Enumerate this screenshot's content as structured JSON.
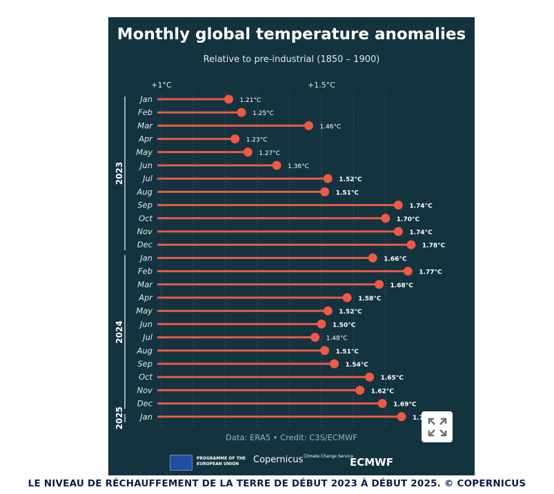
{
  "chart_data": {
    "type": "lollipop",
    "title": "Monthly global temperature anomalies",
    "subtitle": "Relative to pre-industrial (1850 – 1900)",
    "x_ticks": [
      {
        "value": 1.0,
        "label": "+1°C"
      },
      {
        "value": 1.5,
        "label": "+1.5°C"
      }
    ],
    "xlim": [
      1.0,
      1.7
    ],
    "grid": true,
    "groups": [
      {
        "year": "2023",
        "months": [
          "Jan",
          "Feb",
          "Mar",
          "Apr",
          "May",
          "Jun",
          "Jul",
          "Aug",
          "Sep",
          "Oct",
          "Nov",
          "Dec"
        ],
        "values": [
          1.21,
          1.25,
          1.46,
          1.23,
          1.27,
          1.36,
          1.52,
          1.51,
          1.74,
          1.7,
          1.74,
          1.78
        ]
      },
      {
        "year": "2024",
        "months": [
          "Jan",
          "Feb",
          "Mar",
          "Apr",
          "May",
          "Jun",
          "Jul",
          "Aug",
          "Sep",
          "Oct",
          "Nov",
          "Dec"
        ],
        "values": [
          1.66,
          1.77,
          1.68,
          1.58,
          1.52,
          1.5,
          1.48,
          1.51,
          1.54,
          1.65,
          1.62,
          1.69
        ]
      },
      {
        "year": "2025",
        "months": [
          "Jan"
        ],
        "values": [
          1.75
        ]
      }
    ],
    "unit": "°C",
    "colors": {
      "bar": "#ee5a45",
      "background": "#13333f",
      "label": "#ffffff"
    }
  },
  "credit": "Data: ERA5 • Credit: C3S/ECMWF",
  "logos": {
    "eu": "PROGRAMME OF THE EUROPEAN UNION",
    "copernicus": "Copernicus",
    "c3s": "Climate Change Service",
    "ecmwf": "ECMWF"
  },
  "caption": "LE NIVEAU DE RÉCHAUFFEMENT DE LA TERRE DE DÉBUT 2023 À DÉBUT 2025. © COPERNICUS"
}
